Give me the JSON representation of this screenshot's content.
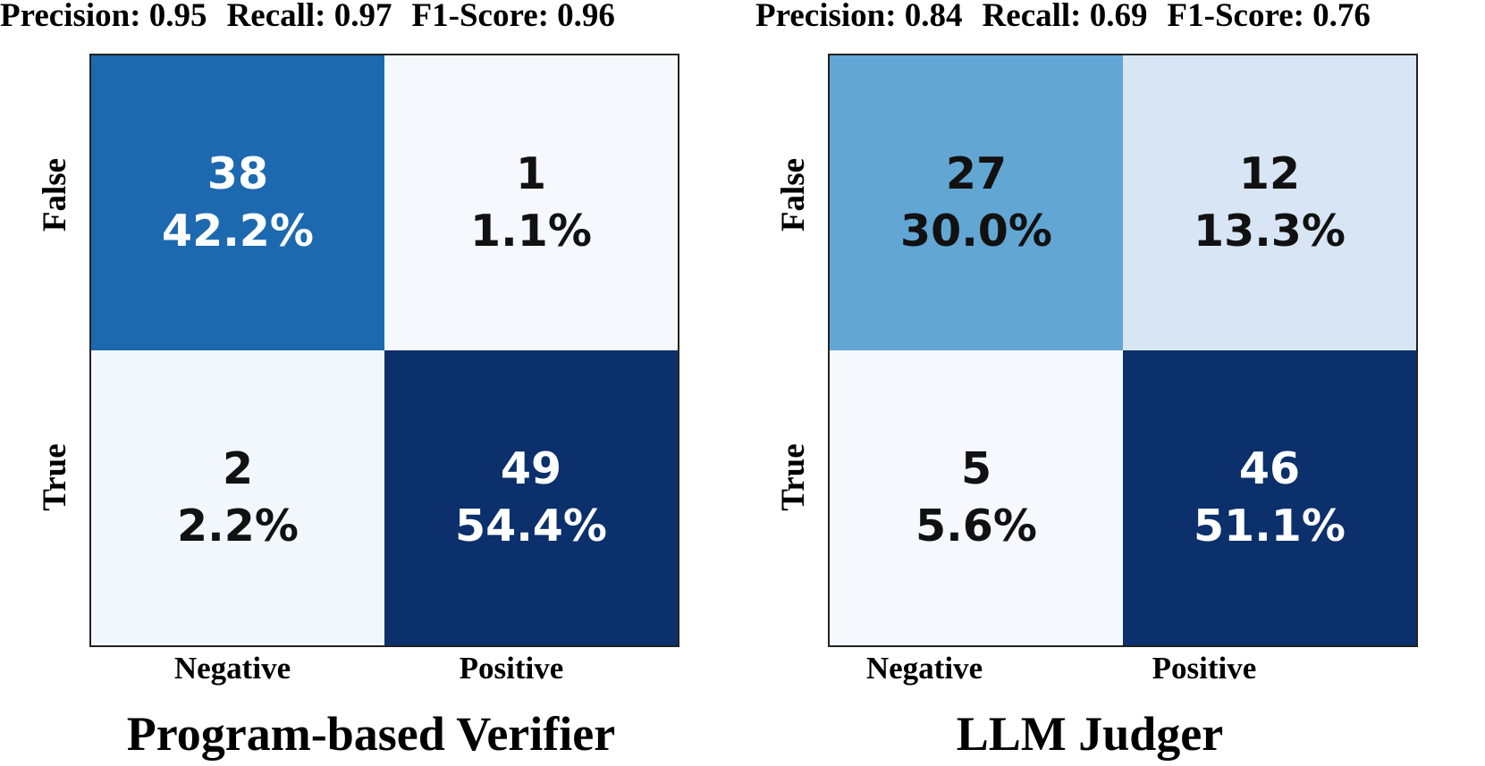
{
  "chart_data": [
    {
      "type": "heatmap",
      "title": "Program-based Verifier",
      "metrics": [
        {
          "label": "Precision: 0.95"
        },
        {
          "label": "Recall: 0.97"
        },
        {
          "label": "F1-Score: 0.96"
        }
      ],
      "row_labels": [
        "False",
        "True"
      ],
      "col_labels": [
        "Negative",
        "Positive"
      ],
      "cells": [
        [
          {
            "count": "38",
            "percent": "42.2%",
            "bg": "#1d69b0",
            "fg": "#ffffff"
          },
          {
            "count": "1",
            "percent": "1.1%",
            "bg": "#f5f9fe",
            "fg": "#111111"
          }
        ],
        [
          {
            "count": "2",
            "percent": "2.2%",
            "bg": "#f2f7fd",
            "fg": "#111111"
          },
          {
            "count": "49",
            "percent": "54.4%",
            "bg": "#0b306b",
            "fg": "#ffffff"
          }
        ]
      ]
    },
    {
      "type": "heatmap",
      "title": "LLM Judger",
      "metrics": [
        {
          "label": "Precision: 0.84"
        },
        {
          "label": "Recall: 0.69"
        },
        {
          "label": "F1-Score: 0.76"
        }
      ],
      "row_labels": [
        "False",
        "True"
      ],
      "col_labels": [
        "Negative",
        "Positive"
      ],
      "cells": [
        [
          {
            "count": "27",
            "percent": "30.0%",
            "bg": "#62a6d3",
            "fg": "#111111"
          },
          {
            "count": "12",
            "percent": "13.3%",
            "bg": "#d7e5f4",
            "fg": "#111111"
          }
        ],
        [
          {
            "count": "5",
            "percent": "5.6%",
            "bg": "#f5f9fe",
            "fg": "#111111"
          },
          {
            "count": "46",
            "percent": "51.1%",
            "bg": "#0b306b",
            "fg": "#ffffff"
          }
        ]
      ]
    }
  ]
}
